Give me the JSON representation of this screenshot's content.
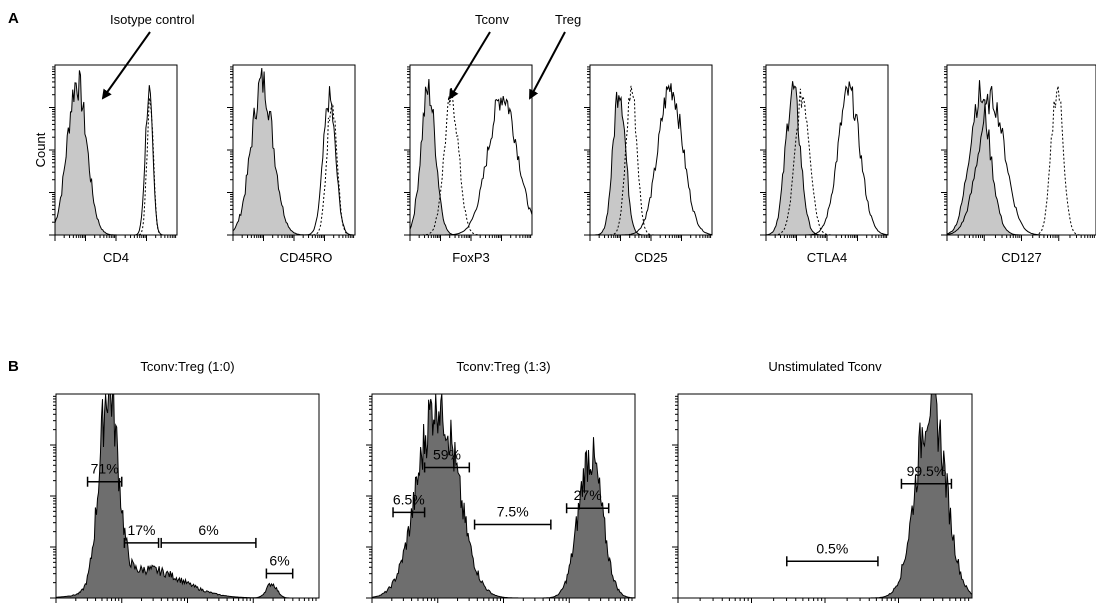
{
  "panel_a": {
    "letter": "A",
    "ylabel": "Count"
  },
  "panel_b": {
    "letter": "B"
  },
  "annotations": {
    "isotype": "Isotype control",
    "tconv": "Tconv",
    "treg": "Treg"
  },
  "chart_data": [
    {
      "type": "histogram",
      "xlabel": "CD4",
      "peaks": {
        "isotype": [
          {
            "center": 0.18,
            "width": 0.08,
            "height": 0.9
          }
        ],
        "tconv": [
          {
            "center": 0.78,
            "width": 0.025,
            "height": 0.85
          }
        ],
        "treg": [
          {
            "center": 0.77,
            "width": 0.03,
            "height": 0.84
          }
        ]
      }
    },
    {
      "type": "histogram",
      "xlabel": "CD45RO",
      "peaks": {
        "isotype": [
          {
            "center": 0.24,
            "width": 0.09,
            "height": 0.9
          }
        ],
        "tconv": [
          {
            "center": 0.81,
            "width": 0.04,
            "height": 0.82
          }
        ],
        "treg": [
          {
            "center": 0.79,
            "width": 0.05,
            "height": 0.8
          }
        ]
      }
    },
    {
      "type": "histogram",
      "xlabel": "FoxP3",
      "peaks": {
        "isotype": [
          {
            "center": 0.15,
            "width": 0.06,
            "height": 0.85
          }
        ],
        "tconv": [
          {
            "center": 0.34,
            "width": 0.06,
            "height": 0.8
          }
        ],
        "treg": [
          {
            "center": 0.76,
            "width": 0.12,
            "height": 0.82
          }
        ]
      }
    },
    {
      "type": "histogram",
      "xlabel": "CD25",
      "peaks": {
        "isotype": [
          {
            "center": 0.24,
            "width": 0.05,
            "height": 0.88
          }
        ],
        "tconv": [
          {
            "center": 0.34,
            "width": 0.045,
            "height": 0.86
          }
        ],
        "treg": [
          {
            "center": 0.66,
            "width": 0.1,
            "height": 0.87
          }
        ]
      }
    },
    {
      "type": "histogram",
      "xlabel": "CTLA4",
      "peaks": {
        "isotype": [
          {
            "center": 0.22,
            "width": 0.06,
            "height": 0.85
          }
        ],
        "tconv": [
          {
            "center": 0.3,
            "width": 0.06,
            "height": 0.82
          }
        ],
        "treg": [
          {
            "center": 0.68,
            "width": 0.09,
            "height": 0.84
          }
        ]
      }
    },
    {
      "type": "histogram",
      "xlabel": "CD127",
      "peaks": {
        "isotype": [
          {
            "center": 0.22,
            "width": 0.07,
            "height": 0.82
          }
        ],
        "tconv": [
          {
            "center": 0.74,
            "width": 0.04,
            "height": 0.87
          }
        ],
        "treg": [
          {
            "center": 0.3,
            "width": 0.09,
            "height": 0.8
          }
        ]
      }
    },
    {
      "type": "histogram",
      "title": "Tconv:Treg (1:0)",
      "peaks": [
        {
          "center": 0.2,
          "width": 0.035,
          "height": 0.97
        },
        {
          "center": 0.35,
          "width": 0.13,
          "height": 0.14
        },
        {
          "center": 0.82,
          "width": 0.02,
          "height": 0.07
        }
      ],
      "gates": [
        {
          "label": "71%",
          "from": 0.12,
          "to": 0.25,
          "level": 0.57
        },
        {
          "label": "17%",
          "from": 0.26,
          "to": 0.39,
          "level": 0.27
        },
        {
          "label": "6%",
          "from": 0.4,
          "to": 0.76,
          "level": 0.27
        },
        {
          "label": "6%",
          "from": 0.8,
          "to": 0.9,
          "level": 0.12
        }
      ]
    },
    {
      "type": "histogram",
      "title": "Tconv:Treg (1:3)",
      "peaks": [
        {
          "center": 0.25,
          "width": 0.075,
          "height": 0.97
        },
        {
          "center": 0.83,
          "width": 0.045,
          "height": 0.7
        }
      ],
      "gates": [
        {
          "label": "59%",
          "from": 0.2,
          "to": 0.37,
          "level": 0.64
        },
        {
          "label": "6.5%",
          "from": 0.08,
          "to": 0.2,
          "level": 0.42
        },
        {
          "label": "7.5%",
          "from": 0.39,
          "to": 0.68,
          "level": 0.36
        },
        {
          "label": "27%",
          "from": 0.74,
          "to": 0.9,
          "level": 0.44
        }
      ]
    },
    {
      "type": "histogram",
      "title": "Unstimulated Tconv",
      "peaks": [
        {
          "center": 0.86,
          "width": 0.05,
          "height": 0.97
        }
      ],
      "gates": [
        {
          "label": "99.5%",
          "from": 0.76,
          "to": 0.93,
          "level": 0.56
        },
        {
          "label": "0.5%",
          "from": 0.37,
          "to": 0.68,
          "level": 0.18
        }
      ]
    }
  ]
}
